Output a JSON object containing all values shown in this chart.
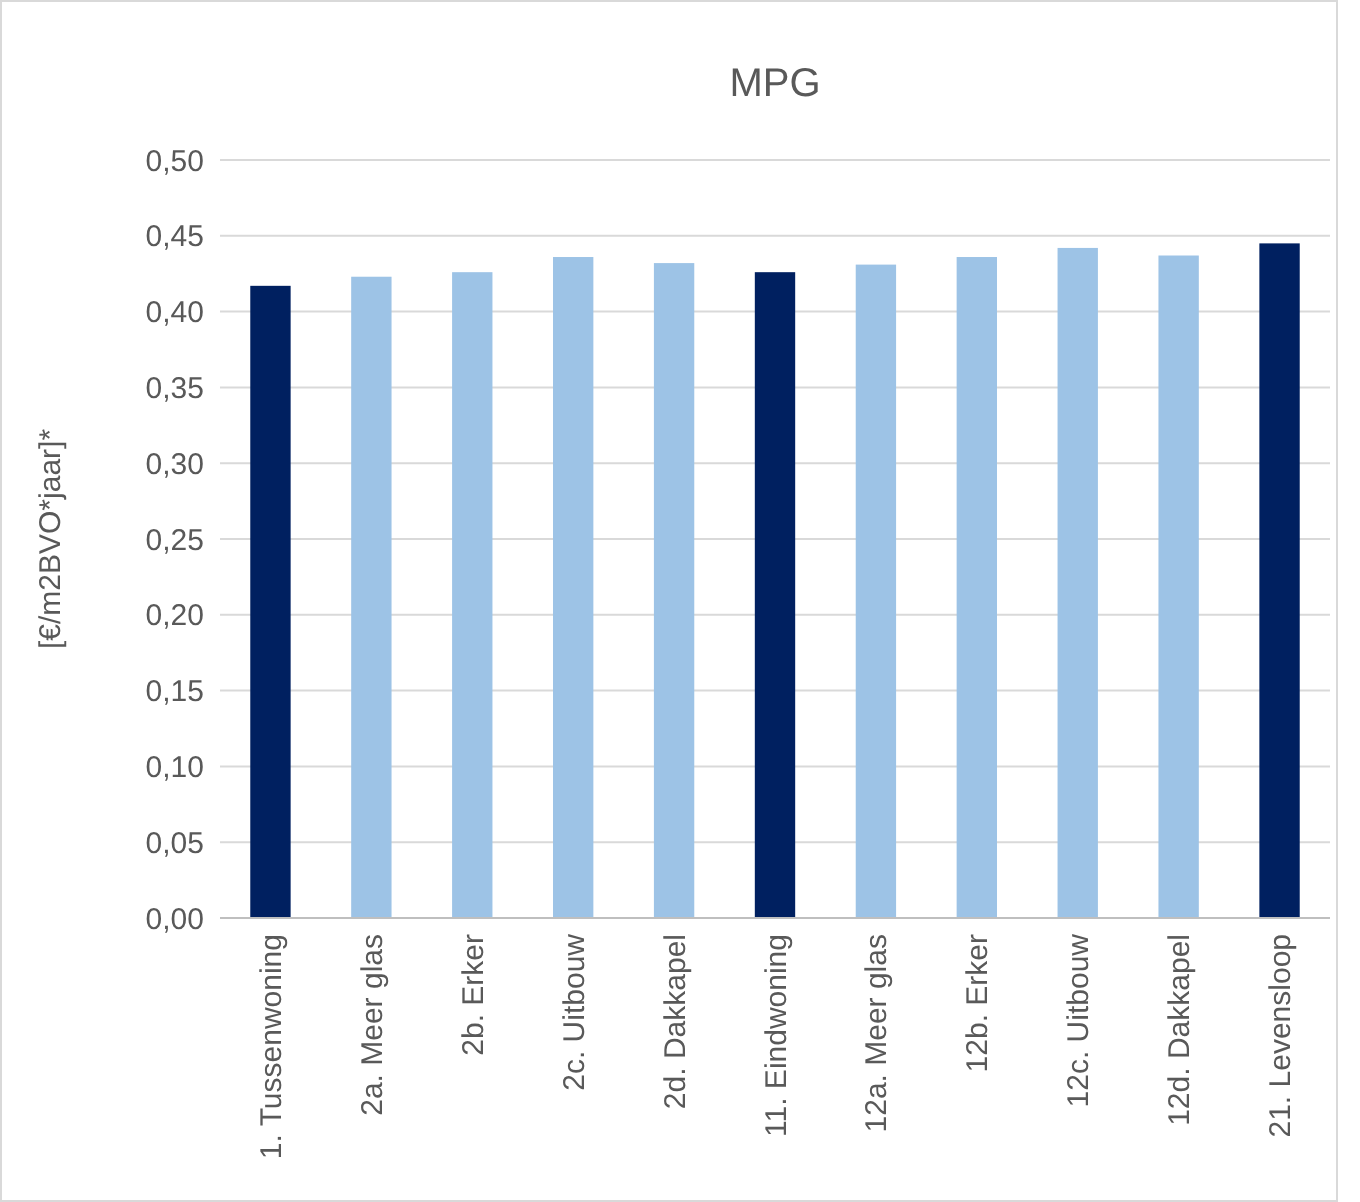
{
  "chart_data": {
    "type": "bar",
    "title": "MPG",
    "ylabel": "[€/m2BVO*jaar]*",
    "categories": [
      "1. Tussenwoning",
      "2a. Meer glas",
      "2b. Erker",
      "2c. Uitbouw",
      "2d. Dakkapel",
      "11. Eindwoning",
      "12a. Meer glas",
      "12b. Erker",
      "12c. Uitbouw",
      "12d. Dakkapel",
      "21. Levensloop"
    ],
    "values": [
      0.417,
      0.423,
      0.426,
      0.436,
      0.432,
      0.426,
      0.431,
      0.436,
      0.442,
      0.437,
      0.445
    ],
    "colors": [
      "#002060",
      "#9dc3e6",
      "#9dc3e6",
      "#9dc3e6",
      "#9dc3e6",
      "#002060",
      "#9dc3e6",
      "#9dc3e6",
      "#9dc3e6",
      "#9dc3e6",
      "#002060"
    ],
    "ylim": [
      0,
      0.5
    ],
    "yticks": [
      {
        "value": 0,
        "label": "0,00"
      },
      {
        "value": 0.05,
        "label": "0,05"
      },
      {
        "value": 0.1,
        "label": "0,10"
      },
      {
        "value": 0.15,
        "label": "0,15"
      },
      {
        "value": 0.2,
        "label": "0,20"
      },
      {
        "value": 0.25,
        "label": "0,25"
      },
      {
        "value": 0.3,
        "label": "0,30"
      },
      {
        "value": 0.35,
        "label": "0,35"
      },
      {
        "value": 0.4,
        "label": "0,40"
      },
      {
        "value": 0.45,
        "label": "0,45"
      },
      {
        "value": 0.5,
        "label": "0,50"
      }
    ],
    "grid": "y"
  }
}
